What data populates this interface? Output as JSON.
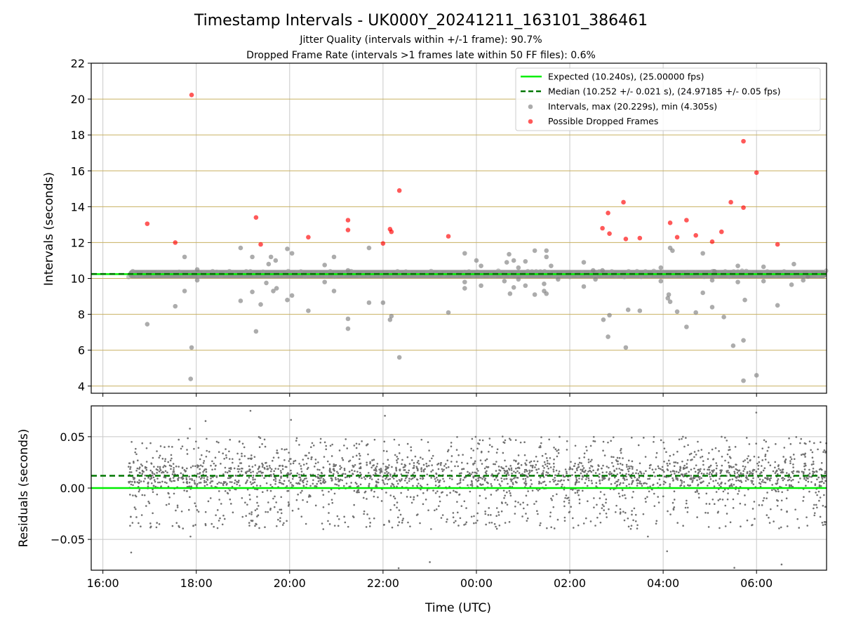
{
  "title": "Timestamp Intervals - UK000Y_20241211_163101_386461",
  "subtitle_1": "Jitter Quality (intervals within +/-1 frame): 90.7%",
  "subtitle_2": "Dropped Frame Rate (intervals >1 frames late within 50 FF files): 0.6%",
  "colors": {
    "expected": "#00ee00",
    "median": "#007700",
    "intervals": "#808080",
    "dropped": "#ff0000",
    "hgrid_top": "#c8b060",
    "grid": "#c8c8c8",
    "residual_points": "#707070"
  },
  "chart_data": [
    {
      "type": "scatter",
      "panel": "top",
      "ylabel": "Intervals (seconds)",
      "ylim": [
        3.6,
        22
      ],
      "yticks": [
        4,
        6,
        8,
        10,
        12,
        14,
        16,
        18,
        20,
        22
      ],
      "xlim_hours": [
        15.75,
        31.5
      ],
      "xticks_hours": [
        16,
        18,
        20,
        22,
        24,
        26,
        28,
        30
      ],
      "xtick_labels": [
        "16:00",
        "18:00",
        "20:00",
        "22:00",
        "00:00",
        "02:00",
        "04:00",
        "06:00"
      ],
      "grid": "horizontal lines at y ticks, vertical lines at x ticks",
      "legend_position": "upper right",
      "legend": [
        "Expected (10.240s), (25.00000 fps)",
        "Median (10.252 +/- 0.021 s), (24.97185 +/- 0.05 fps)",
        "Intervals, max (20.229s), min (4.305s)",
        "Possible Dropped Frames"
      ],
      "expected_line": 10.24,
      "median_line": 10.252,
      "band": {
        "x_start": 16.55,
        "x_end": 31.5,
        "y_center": 10.24
      },
      "intervals_outliers": [
        [
          16.95,
          7.45
        ],
        [
          17.55,
          8.45
        ],
        [
          17.75,
          9.3
        ],
        [
          17.75,
          11.2
        ],
        [
          17.9,
          6.15
        ],
        [
          17.88,
          4.4
        ],
        [
          18.02,
          9.9
        ],
        [
          18.02,
          10.5
        ],
        [
          18.95,
          8.75
        ],
        [
          18.95,
          11.7
        ],
        [
          19.2,
          9.25
        ],
        [
          19.2,
          11.2
        ],
        [
          19.28,
          7.05
        ],
        [
          19.38,
          8.55
        ],
        [
          19.5,
          9.75
        ],
        [
          19.55,
          10.8
        ],
        [
          19.6,
          11.2
        ],
        [
          19.65,
          9.3
        ],
        [
          19.7,
          11
        ],
        [
          19.72,
          9.45
        ],
        [
          19.95,
          8.8
        ],
        [
          19.95,
          11.65
        ],
        [
          20.05,
          9.05
        ],
        [
          20.05,
          11.4
        ],
        [
          20.4,
          8.2
        ],
        [
          20.75,
          9.8
        ],
        [
          20.75,
          10.75
        ],
        [
          20.95,
          9.3
        ],
        [
          20.95,
          11.2
        ],
        [
          21.25,
          7.75
        ],
        [
          21.25,
          7.2
        ],
        [
          21.25,
          10.45
        ],
        [
          21.7,
          8.65
        ],
        [
          21.7,
          11.7
        ],
        [
          22,
          8.65
        ],
        [
          22.15,
          7.7
        ],
        [
          22.18,
          7.9
        ],
        [
          22.35,
          5.6
        ],
        [
          23.4,
          8.1
        ],
        [
          23.75,
          9.45
        ],
        [
          23.75,
          9.8
        ],
        [
          23.75,
          11.4
        ],
        [
          24,
          11
        ],
        [
          24.1,
          9.6
        ],
        [
          24.1,
          10.7
        ],
        [
          24.6,
          9.85
        ],
        [
          24.65,
          10.9
        ],
        [
          24.7,
          11.35
        ],
        [
          24.72,
          9.15
        ],
        [
          24.8,
          9.5
        ],
        [
          24.8,
          11
        ],
        [
          24.9,
          10.6
        ],
        [
          24.9,
          9.95
        ],
        [
          25.05,
          9.6
        ],
        [
          25.05,
          10.95
        ],
        [
          25.25,
          9.1
        ],
        [
          25.25,
          11.55
        ],
        [
          25.45,
          9.3
        ],
        [
          25.45,
          9.7
        ],
        [
          25.5,
          11.2
        ],
        [
          25.5,
          11.55
        ],
        [
          25.5,
          9.15
        ],
        [
          25.6,
          10.7
        ],
        [
          25.75,
          9.95
        ],
        [
          26.3,
          9.55
        ],
        [
          26.3,
          10.9
        ],
        [
          26.5,
          10.45
        ],
        [
          26.55,
          9.95
        ],
        [
          26.7,
          10.45
        ],
        [
          26.72,
          7.7
        ],
        [
          26.82,
          6.75
        ],
        [
          26.85,
          7.95
        ],
        [
          27.2,
          6.15
        ],
        [
          27.25,
          8.25
        ],
        [
          27.5,
          8.2
        ],
        [
          27.95,
          9.85
        ],
        [
          27.95,
          10.6
        ],
        [
          28.1,
          8.9
        ],
        [
          28.12,
          9.1
        ],
        [
          28.15,
          8.7
        ],
        [
          28.15,
          11.7
        ],
        [
          28.2,
          11.55
        ],
        [
          28.3,
          8.15
        ],
        [
          28.5,
          7.3
        ],
        [
          28.7,
          8.1
        ],
        [
          28.85,
          9.2
        ],
        [
          28.85,
          11.4
        ],
        [
          29.05,
          8.4
        ],
        [
          29.05,
          9.9
        ],
        [
          29.1,
          10.4
        ],
        [
          29.3,
          7.85
        ],
        [
          29.5,
          6.25
        ],
        [
          29.6,
          9.8
        ],
        [
          29.6,
          10.7
        ],
        [
          29.72,
          6.55
        ],
        [
          29.72,
          4.3
        ],
        [
          29.75,
          8.8
        ],
        [
          30,
          4.6
        ],
        [
          30.15,
          9.85
        ],
        [
          30.15,
          10.65
        ],
        [
          30.45,
          8.5
        ],
        [
          30.75,
          9.65
        ],
        [
          30.8,
          10.8
        ],
        [
          31,
          9.9
        ],
        [
          31.1,
          10.1
        ]
      ],
      "dropped_frames": [
        [
          16.95,
          13.05
        ],
        [
          17.55,
          12
        ],
        [
          17.9,
          20.23
        ],
        [
          19.28,
          13.4
        ],
        [
          19.38,
          11.9
        ],
        [
          20.4,
          12.3
        ],
        [
          21.25,
          13.25
        ],
        [
          21.25,
          12.7
        ],
        [
          22,
          11.95
        ],
        [
          22.15,
          12.75
        ],
        [
          22.18,
          12.6
        ],
        [
          22.35,
          14.9
        ],
        [
          23.4,
          12.35
        ],
        [
          26.7,
          12.8
        ],
        [
          26.82,
          13.65
        ],
        [
          26.85,
          12.5
        ],
        [
          27.15,
          14.25
        ],
        [
          27.2,
          12.2
        ],
        [
          27.5,
          12.25
        ],
        [
          28.15,
          13.1
        ],
        [
          28.3,
          12.3
        ],
        [
          28.5,
          13.25
        ],
        [
          28.7,
          12.4
        ],
        [
          29.05,
          12.05
        ],
        [
          29.25,
          12.6
        ],
        [
          29.45,
          14.25
        ],
        [
          29.72,
          13.95
        ],
        [
          29.72,
          17.65
        ],
        [
          30,
          15.9
        ],
        [
          30.45,
          11.9
        ]
      ]
    },
    {
      "type": "scatter",
      "panel": "bottom",
      "xlabel": "Time (UTC)",
      "ylabel": "Residuals (seconds)",
      "ylim": [
        -0.08,
        0.08
      ],
      "yticks": [
        -0.05,
        0.0,
        0.05
      ],
      "ytick_labels": [
        "−0.05",
        "0.00",
        "0.05"
      ],
      "xlim_hours": [
        15.75,
        31.5
      ],
      "xticks_hours": [
        16,
        18,
        20,
        22,
        24,
        26,
        28,
        30
      ],
      "xtick_labels": [
        "16:00",
        "18:00",
        "20:00",
        "22:00",
        "00:00",
        "02:00",
        "04:00",
        "06:00"
      ],
      "expected_line": 0.0,
      "median_line": 0.012,
      "residual_points": {
        "x_range_hours": [
          16.55,
          31.5
        ],
        "center": 0.012,
        "typical_spread": [
          -0.04,
          0.05
        ],
        "extremes": [
          -0.08,
          0.077
        ]
      }
    }
  ]
}
